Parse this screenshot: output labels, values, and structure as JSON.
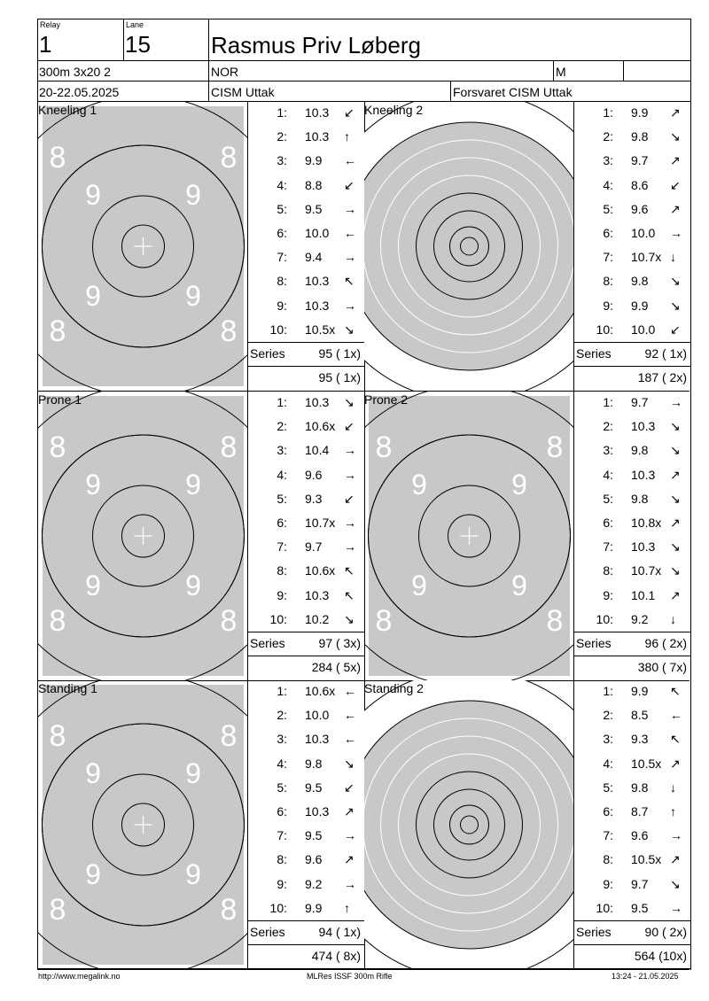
{
  "header": {
    "relay_label": "Relay",
    "relay_value": "1",
    "lane_label": "Lane",
    "lane_value": "15",
    "name": "Rasmus Priv Løberg",
    "event": "300m 3x20 2",
    "nation": "NOR",
    "gender": "M",
    "dates": "20-22.05.2025",
    "competition": "CISM Uttak",
    "club": "Forsvaret CISM Uttak"
  },
  "series_label": "Series",
  "sections": [
    {
      "label": "Kneeling 1",
      "target": "large",
      "shots": [
        {
          "n": "1:",
          "v": "10.3",
          "a": "↙"
        },
        {
          "n": "2:",
          "v": "10.3",
          "a": "↑"
        },
        {
          "n": "3:",
          "v": "9.9",
          "a": "←"
        },
        {
          "n": "4:",
          "v": "8.8",
          "a": "↙"
        },
        {
          "n": "5:",
          "v": "9.5",
          "a": "→"
        },
        {
          "n": "6:",
          "v": "10.0",
          "a": "←"
        },
        {
          "n": "7:",
          "v": "9.4",
          "a": "→"
        },
        {
          "n": "8:",
          "v": "10.3",
          "a": "↖"
        },
        {
          "n": "9:",
          "v": "10.3",
          "a": "→"
        },
        {
          "n": "10:",
          "v": "10.5x",
          "a": "↘"
        }
      ],
      "series_total": "95 ( 1x)",
      "cumulative": "95 ( 1x)"
    },
    {
      "label": "Kneeling 2",
      "target": "small",
      "shots": [
        {
          "n": "1:",
          "v": "9.9",
          "a": "↗"
        },
        {
          "n": "2:",
          "v": "9.8",
          "a": "↘"
        },
        {
          "n": "3:",
          "v": "9.7",
          "a": "↗"
        },
        {
          "n": "4:",
          "v": "8.6",
          "a": "↙"
        },
        {
          "n": "5:",
          "v": "9.6",
          "a": "↗"
        },
        {
          "n": "6:",
          "v": "10.0",
          "a": "→"
        },
        {
          "n": "7:",
          "v": "10.7x",
          "a": "↓"
        },
        {
          "n": "8:",
          "v": "9.8",
          "a": "↘"
        },
        {
          "n": "9:",
          "v": "9.9",
          "a": "↘"
        },
        {
          "n": "10:",
          "v": "10.0",
          "a": "↙"
        }
      ],
      "series_total": "92 ( 1x)",
      "cumulative": "187 ( 2x)"
    },
    {
      "label": "Prone 1",
      "target": "large",
      "shots": [
        {
          "n": "1:",
          "v": "10.3",
          "a": "↘"
        },
        {
          "n": "2:",
          "v": "10.6x",
          "a": "↙"
        },
        {
          "n": "3:",
          "v": "10.4",
          "a": "→"
        },
        {
          "n": "4:",
          "v": "9.6",
          "a": "→"
        },
        {
          "n": "5:",
          "v": "9.3",
          "a": "↙"
        },
        {
          "n": "6:",
          "v": "10.7x",
          "a": "→"
        },
        {
          "n": "7:",
          "v": "9.7",
          "a": "→"
        },
        {
          "n": "8:",
          "v": "10.6x",
          "a": "↖"
        },
        {
          "n": "9:",
          "v": "10.3",
          "a": "↖"
        },
        {
          "n": "10:",
          "v": "10.2",
          "a": "↘"
        }
      ],
      "series_total": "97 ( 3x)",
      "cumulative": "284 ( 5x)"
    },
    {
      "label": "Prone 2",
      "target": "large",
      "shots": [
        {
          "n": "1:",
          "v": "9.7",
          "a": "→"
        },
        {
          "n": "2:",
          "v": "10.3",
          "a": "↘"
        },
        {
          "n": "3:",
          "v": "9.8",
          "a": "↘"
        },
        {
          "n": "4:",
          "v": "10.3",
          "a": "↗"
        },
        {
          "n": "5:",
          "v": "9.8",
          "a": "↘"
        },
        {
          "n": "6:",
          "v": "10.8x",
          "a": "↗"
        },
        {
          "n": "7:",
          "v": "10.3",
          "a": "↘"
        },
        {
          "n": "8:",
          "v": "10.7x",
          "a": "↘"
        },
        {
          "n": "9:",
          "v": "10.1",
          "a": "↗"
        },
        {
          "n": "10:",
          "v": "9.2",
          "a": "↓"
        }
      ],
      "series_total": "96 ( 2x)",
      "cumulative": "380 ( 7x)"
    },
    {
      "label": "Standing 1",
      "target": "large",
      "shots": [
        {
          "n": "1:",
          "v": "10.6x",
          "a": "←"
        },
        {
          "n": "2:",
          "v": "10.0",
          "a": "←"
        },
        {
          "n": "3:",
          "v": "10.3",
          "a": "←"
        },
        {
          "n": "4:",
          "v": "9.8",
          "a": "↘"
        },
        {
          "n": "5:",
          "v": "9.5",
          "a": "↙"
        },
        {
          "n": "6:",
          "v": "10.3",
          "a": "↗"
        },
        {
          "n": "7:",
          "v": "9.5",
          "a": "→"
        },
        {
          "n": "8:",
          "v": "9.6",
          "a": "↗"
        },
        {
          "n": "9:",
          "v": "9.2",
          "a": "→"
        },
        {
          "n": "10:",
          "v": "9.9",
          "a": "↑"
        }
      ],
      "series_total": "94 ( 1x)",
      "cumulative": "474 ( 8x)"
    },
    {
      "label": "Standing 2",
      "target": "small",
      "shots": [
        {
          "n": "1:",
          "v": "9.9",
          "a": "↖"
        },
        {
          "n": "2:",
          "v": "8.5",
          "a": "←"
        },
        {
          "n": "3:",
          "v": "9.3",
          "a": "↖"
        },
        {
          "n": "4:",
          "v": "10.5x",
          "a": "↗"
        },
        {
          "n": "5:",
          "v": "9.8",
          "a": "↓"
        },
        {
          "n": "6:",
          "v": "8.7",
          "a": "↑"
        },
        {
          "n": "7:",
          "v": "9.6",
          "a": "→"
        },
        {
          "n": "8:",
          "v": "10.5x",
          "a": "↗"
        },
        {
          "n": "9:",
          "v": "9.7",
          "a": "↘"
        },
        {
          "n": "10:",
          "v": "9.5",
          "a": "→"
        }
      ],
      "series_total": "90 ( 2x)",
      "cumulative": "564 (10x)"
    }
  ],
  "footer": {
    "left": "http://www.megalink.no",
    "center": "MLRes ISSF 300m Rifle",
    "right": "13:24 - 21.05.2025"
  }
}
